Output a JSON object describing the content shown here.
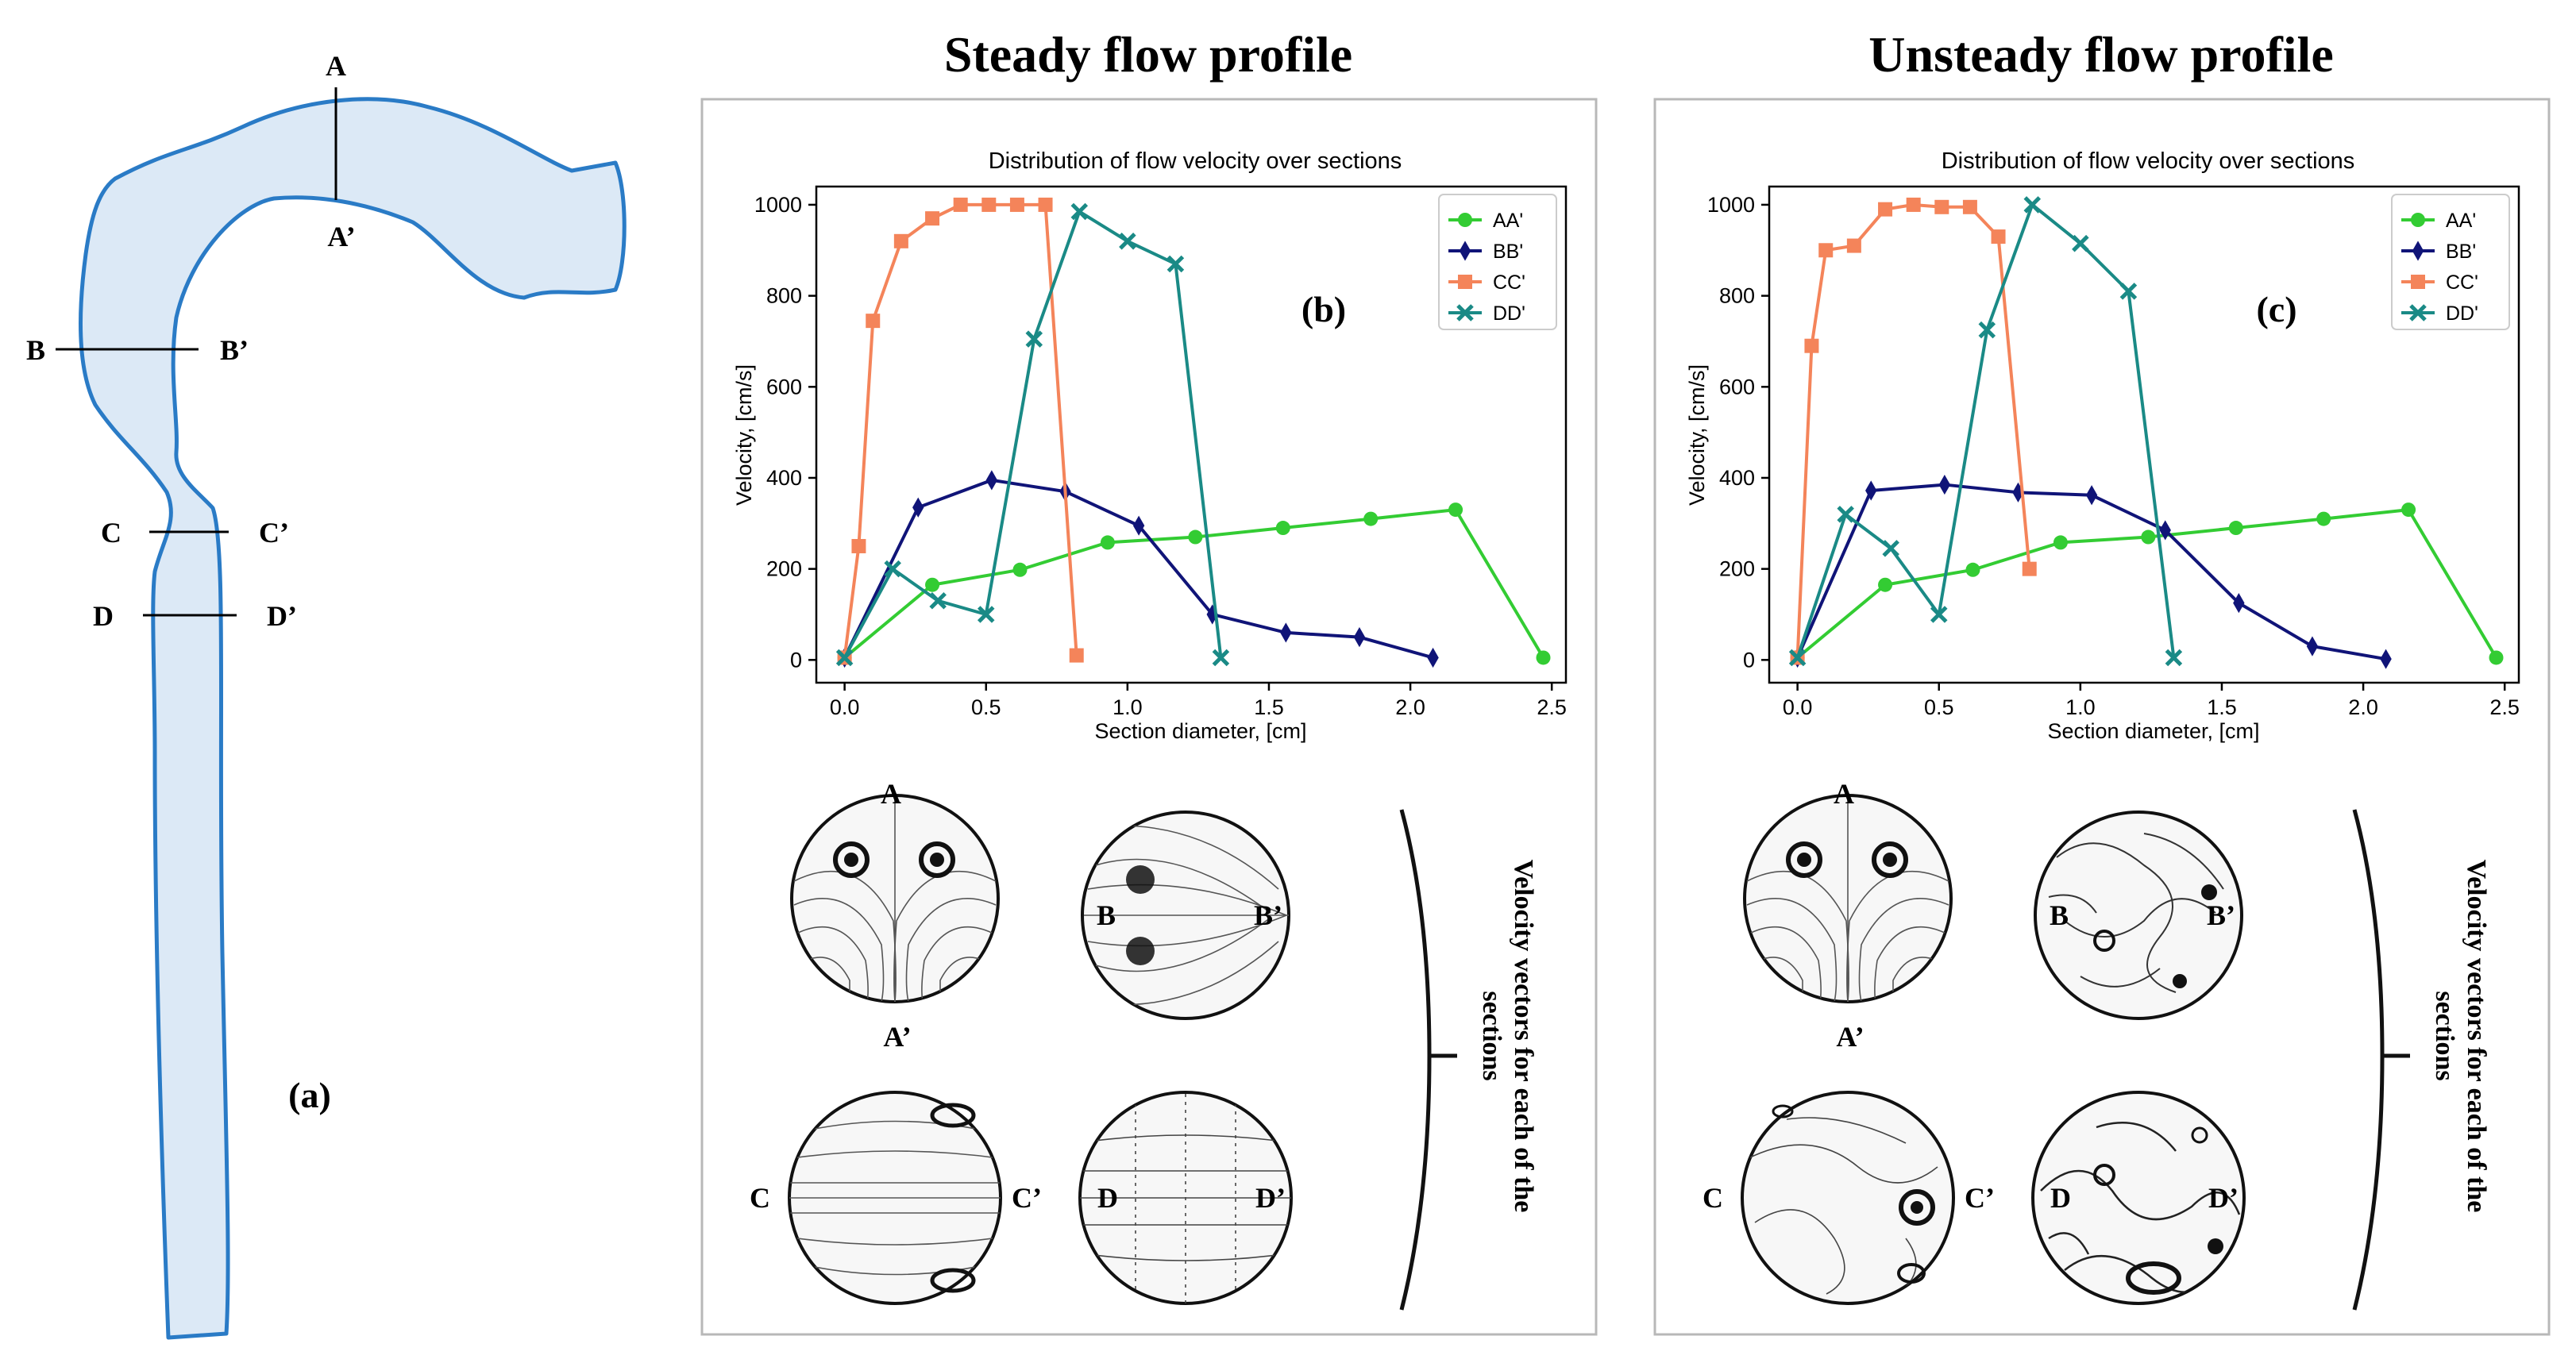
{
  "figure": {
    "panel_a_label": "(a)",
    "vessel_sections": [
      {
        "start": "A",
        "end": "A’"
      },
      {
        "start": "B",
        "end": "B’"
      },
      {
        "start": "C",
        "end": "C’"
      },
      {
        "start": "D",
        "end": "D’"
      }
    ],
    "colors": {
      "vessel_fill": "#dce9f6",
      "vessel_stroke": "#2a7bc6",
      "AA": "#33cc33",
      "BB": "#101478",
      "CC": "#f4845a",
      "DD": "#1a8a86"
    },
    "vectors_caption_line1": "Velocity vectors for each of the",
    "vectors_caption_line2": "sections",
    "vector_icon_names": [
      "vortex-pair-icon",
      "vortex-pair-icon",
      "parallel-streamlines-icon",
      "parallel-streamlines-icon",
      "vortex-pair-icon",
      "chaotic-flow-icon",
      "chaotic-flow-icon",
      "chaotic-flow-icon"
    ]
  },
  "chart_data": [
    {
      "type": "line",
      "heading": "Steady flow profile",
      "panel_label": "(b)",
      "title": "Distribution of flow velocity over sections",
      "xlabel": "Section diameter, [cm]",
      "ylabel": "Velocity, [cm/s]",
      "xlim": [
        -0.1,
        2.55
      ],
      "ylim": [
        -50,
        1040
      ],
      "xticks": [
        "0.0",
        "0.5",
        "1.0",
        "1.5",
        "2.0",
        "2.5"
      ],
      "yticks": [
        "0",
        "200",
        "400",
        "600",
        "800",
        "1000"
      ],
      "grid": false,
      "legend_position": "top-right",
      "series": [
        {
          "name": "AA'",
          "marker": "circle",
          "color": "#33cc33",
          "x": [
            0.0,
            0.31,
            0.62,
            0.93,
            1.24,
            1.55,
            1.86,
            2.16,
            2.47
          ],
          "y": [
            5,
            165,
            198,
            258,
            270,
            290,
            310,
            330,
            5
          ]
        },
        {
          "name": "BB'",
          "marker": "diamond",
          "color": "#101478",
          "x": [
            0.0,
            0.26,
            0.52,
            0.78,
            1.04,
            1.3,
            1.56,
            1.82,
            2.08
          ],
          "y": [
            5,
            335,
            395,
            370,
            295,
            100,
            60,
            50,
            5
          ]
        },
        {
          "name": "CC'",
          "marker": "square",
          "color": "#f4845a",
          "x": [
            0.0,
            0.05,
            0.1,
            0.2,
            0.31,
            0.41,
            0.51,
            0.61,
            0.71,
            0.82
          ],
          "y": [
            5,
            250,
            745,
            920,
            970,
            1000,
            1000,
            1000,
            1000,
            10
          ]
        },
        {
          "name": "DD'",
          "marker": "x",
          "color": "#1a8a86",
          "x": [
            0.0,
            0.17,
            0.33,
            0.5,
            0.67,
            0.83,
            1.0,
            1.17,
            1.33
          ],
          "y": [
            5,
            200,
            130,
            100,
            705,
            985,
            920,
            870,
            5
          ]
        }
      ],
      "vector_labels": [
        "A",
        "A’",
        "B",
        "B’",
        "C",
        "C’",
        "D",
        "D’"
      ]
    },
    {
      "type": "line",
      "heading": "Unsteady flow profile",
      "panel_label": "(c)",
      "title": "Distribution of flow velocity over sections",
      "xlabel": "Section diameter, [cm]",
      "ylabel": "Velocity, [cm/s]",
      "xlim": [
        -0.1,
        2.55
      ],
      "ylim": [
        -50,
        1040
      ],
      "xticks": [
        "0.0",
        "0.5",
        "1.0",
        "1.5",
        "2.0",
        "2.5"
      ],
      "yticks": [
        "0",
        "200",
        "400",
        "600",
        "800",
        "1000"
      ],
      "grid": false,
      "legend_position": "top-right",
      "series": [
        {
          "name": "AA'",
          "marker": "circle",
          "color": "#33cc33",
          "x": [
            0.0,
            0.31,
            0.62,
            0.93,
            1.24,
            1.55,
            1.86,
            2.16,
            2.47
          ],
          "y": [
            5,
            165,
            198,
            258,
            270,
            290,
            310,
            330,
            5
          ]
        },
        {
          "name": "BB'",
          "marker": "diamond",
          "color": "#101478",
          "x": [
            0.0,
            0.26,
            0.52,
            0.78,
            1.04,
            1.3,
            1.56,
            1.82,
            2.08
          ],
          "y": [
            5,
            372,
            385,
            368,
            362,
            285,
            125,
            30,
            2
          ]
        },
        {
          "name": "CC'",
          "marker": "square",
          "color": "#f4845a",
          "x": [
            0.0,
            0.05,
            0.1,
            0.2,
            0.31,
            0.41,
            0.51,
            0.61,
            0.71,
            0.82
          ],
          "y": [
            5,
            690,
            900,
            910,
            990,
            1000,
            995,
            995,
            930,
            200
          ]
        },
        {
          "name": "DD'",
          "marker": "x",
          "color": "#1a8a86",
          "x": [
            0.0,
            0.17,
            0.33,
            0.5,
            0.67,
            0.83,
            1.0,
            1.17,
            1.33
          ],
          "y": [
            5,
            320,
            245,
            100,
            725,
            1000,
            915,
            810,
            5
          ]
        }
      ],
      "vector_labels": [
        "A",
        "A’",
        "B",
        "B’",
        "C",
        "C’",
        "D",
        "D’"
      ]
    }
  ]
}
